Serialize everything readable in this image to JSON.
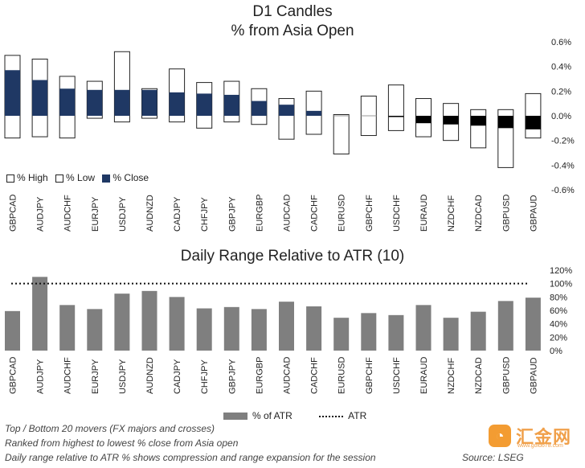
{
  "chart_data": [
    {
      "type": "candlestick",
      "title": "D1 Candles",
      "subtitle": "% from Asia Open",
      "categories": [
        "GBPCAD",
        "AUDJPY",
        "AUDCHF",
        "EURJPY",
        "USDJPY",
        "AUDNZD",
        "CADJPY",
        "CHFJPY",
        "GBPJPY",
        "EURGBP",
        "AUDCAD",
        "CADCHF",
        "EURUSD",
        "GBPCHF",
        "USDCHF",
        "EURAUD",
        "NZDCHF",
        "NZDCAD",
        "GBPUSD",
        "GBPAUD"
      ],
      "series": [
        {
          "name": "% High",
          "values": [
            0.49,
            0.46,
            0.32,
            0.28,
            0.52,
            0.22,
            0.38,
            0.27,
            0.28,
            0.22,
            0.14,
            0.2,
            0.01,
            0.16,
            0.25,
            0.14,
            0.1,
            0.05,
            0.05,
            0.18
          ]
        },
        {
          "name": "% Low",
          "values": [
            -0.18,
            -0.17,
            -0.18,
            -0.02,
            -0.05,
            -0.02,
            -0.05,
            -0.1,
            -0.05,
            -0.07,
            -0.19,
            -0.15,
            -0.31,
            -0.16,
            -0.12,
            -0.17,
            -0.2,
            -0.26,
            -0.42,
            -0.18
          ]
        },
        {
          "name": "% Close",
          "values": [
            0.37,
            0.29,
            0.22,
            0.21,
            0.21,
            0.21,
            0.19,
            0.18,
            0.17,
            0.12,
            0.09,
            0.04,
            0.0,
            0.0,
            -0.01,
            -0.06,
            -0.07,
            -0.08,
            -0.1,
            -0.11
          ]
        }
      ],
      "yticks": [
        "0.6%",
        "0.4%",
        "0.2%",
        "0.0%",
        "-0.2%",
        "-0.4%",
        "-0.6%"
      ],
      "ylim": [
        -0.6,
        0.6
      ],
      "legend": [
        "% High",
        "% Low",
        "% Close"
      ],
      "legend_position": "bottom-left",
      "colors": {
        "close": "#1f3864",
        "box_border": "#222222",
        "box_fill": "#ffffff"
      }
    },
    {
      "type": "bar",
      "title": "Daily Range Relative to ATR (10)",
      "categories": [
        "GBPCAD",
        "AUDJPY",
        "AUDCHF",
        "EURJPY",
        "USDJPY",
        "AUDNZD",
        "CADJPY",
        "CHFJPY",
        "GBPJPY",
        "EURGBP",
        "AUDCAD",
        "CADCHF",
        "EURUSD",
        "GBPCHF",
        "USDCHF",
        "EURAUD",
        "NZDCHF",
        "NZDCAD",
        "GBPUSD",
        "GBPAUD"
      ],
      "series": [
        {
          "name": "% of ATR",
          "values": [
            59,
            110,
            68,
            62,
            85,
            89,
            80,
            63,
            65,
            62,
            73,
            66,
            49,
            56,
            53,
            68,
            49,
            58,
            74,
            79
          ]
        }
      ],
      "reference_line": {
        "name": "ATR",
        "value": 100
      },
      "yticks": [
        "120%",
        "100%",
        "80%",
        "60%",
        "40%",
        "20%",
        "0%"
      ],
      "ylim": [
        0,
        120
      ],
      "legend": [
        "% of ATR",
        "ATR"
      ],
      "legend_position": "bottom",
      "colors": {
        "bar": "#7f7f7f",
        "atr_line": "#111111"
      }
    }
  ],
  "labels": {
    "title1": "D1 Candles",
    "title2": "% from Asia Open",
    "title3": "Daily Range Relative to ATR (10)",
    "legend_high": "% High",
    "legend_low": "% Low",
    "legend_close": "% Close",
    "legend_atr_bar": "% of ATR",
    "legend_atr_line": "ATR"
  },
  "footer": {
    "line1": "Top / Bottom 20 movers (FX majors and crosses)",
    "line2": "Ranked from highest to lowest % close from Asia open",
    "line3": "Daily range relative to ATR % shows compression and range expansion for the session",
    "source": "Source: LSEG"
  },
  "logo": {
    "text": "汇金网",
    "url": "www.gold678.com",
    "icon": "logo-icon"
  }
}
